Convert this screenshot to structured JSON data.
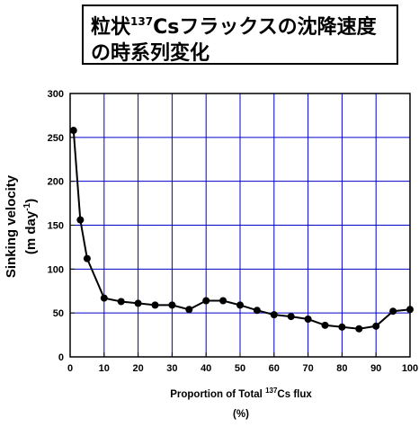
{
  "title": {
    "line1_pre": "粒状",
    "line1_sup": "137",
    "line1_post": "Csフラックスの沈降速度",
    "line2": "の時系列変化"
  },
  "colors": {
    "grid": "#0000cc",
    "line": "#000000",
    "marker": "#000000",
    "axis": "#000000"
  },
  "chart_data": {
    "type": "line",
    "title": "粒状137Csフラックスの沈降速度の時系列変化",
    "xlabel_pre": "Proportion of Total ",
    "xlabel_sup": "137",
    "xlabel_post": "Cs flux",
    "xlabel_unit": "(%)",
    "ylabel_line1": "Sinking velocity",
    "ylabel_line2_pre": "(m day",
    "ylabel_line2_sup": "-1",
    "ylabel_line2_post": ")",
    "xlim": [
      0,
      100
    ],
    "ylim": [
      0,
      300
    ],
    "xticks": [
      0,
      10,
      20,
      30,
      40,
      50,
      60,
      70,
      80,
      90,
      100
    ],
    "yticks": [
      0,
      50,
      100,
      150,
      200,
      250,
      300
    ],
    "grid": true,
    "x": [
      1,
      3,
      5,
      10,
      15,
      20,
      25,
      30,
      35,
      40,
      45,
      50,
      55,
      60,
      65,
      70,
      75,
      80,
      85,
      90,
      95,
      100
    ],
    "y": [
      258,
      156,
      112,
      67,
      63,
      61,
      59,
      59,
      54,
      64,
      64,
      59,
      53,
      48,
      46,
      43,
      36,
      34,
      32,
      35,
      52,
      54
    ]
  }
}
